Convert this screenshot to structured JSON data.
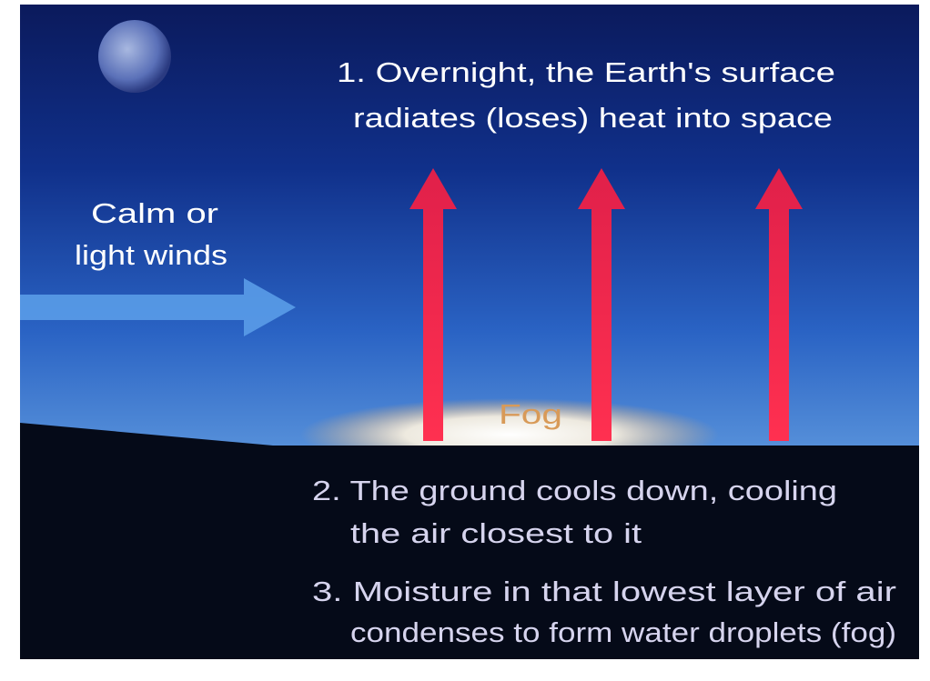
{
  "step1": {
    "lines": [
      "1. Overnight, the Earth's surface",
      "radiates (loses) heat into space"
    ]
  },
  "wind": {
    "lines": [
      "Calm or",
      "light winds"
    ]
  },
  "fog": "Fog",
  "step2": {
    "lines": [
      "2. The ground cools down, cooling",
      "the air closest to it"
    ]
  },
  "step3": {
    "lines": [
      "3. Moisture in that lowest layer of air",
      "condenses to form water droplets (fog)"
    ]
  }
}
